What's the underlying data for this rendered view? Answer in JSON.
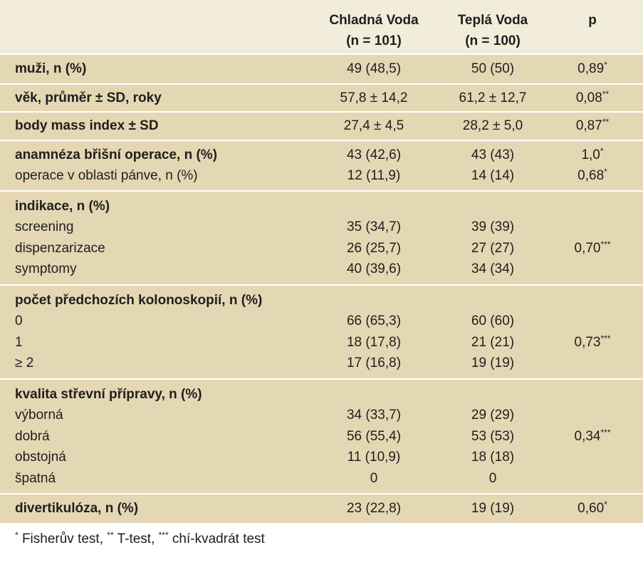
{
  "header": {
    "col1_line1": "Chladná Voda",
    "col1_line2": "(n = 101)",
    "col2_line1": "Teplá Voda",
    "col2_line2": "(n = 100)",
    "col3": "p"
  },
  "groups": [
    {
      "rows": [
        {
          "label": "muži, n (%)",
          "bold": true,
          "c1": "49 (48,5)",
          "c2": "50 (50)",
          "p": "0,89",
          "sup": "*"
        }
      ]
    },
    {
      "rows": [
        {
          "label": "věk, průměr ± SD, roky",
          "bold": true,
          "c1": "57,8 ± 14,2",
          "c2": "61,2 ± 12,7",
          "p": "0,08",
          "sup": "**"
        }
      ]
    },
    {
      "rows": [
        {
          "label": "body mass index ± SD",
          "bold": true,
          "c1": "27,4 ± 4,5",
          "c2": "28,2 ± 5,0",
          "p": "0,87",
          "sup": "**"
        }
      ]
    },
    {
      "rows": [
        {
          "label": "anamnéza břišní operace, n (%)",
          "bold": true,
          "c1": "43 (42,6)",
          "c2": "43 (43)",
          "p": "1,0",
          "sup": "*"
        },
        {
          "label": "operace v oblasti pánve, n (%)",
          "bold": false,
          "c1": "12 (11,9)",
          "c2": "14 (14)",
          "p": "0,68",
          "sup": "*"
        }
      ]
    },
    {
      "rows": [
        {
          "label": "indikace, n (%)",
          "bold": true,
          "c1": "",
          "c2": "",
          "p": "",
          "sup": ""
        },
        {
          "label": "screening",
          "bold": false,
          "c1": "35 (34,7)",
          "c2": "39 (39)",
          "p": "",
          "sup": ""
        },
        {
          "label": "dispenzarizace",
          "bold": false,
          "c1": "26 (25,7)",
          "c2": "27 (27)",
          "p": "0,70",
          "sup": "***"
        },
        {
          "label": "symptomy",
          "bold": false,
          "c1": "40 (39,6)",
          "c2": "34 (34)",
          "p": "",
          "sup": ""
        }
      ]
    },
    {
      "rows": [
        {
          "label": "počet předchozích kolonoskopií, n (%)",
          "bold": true,
          "c1": "",
          "c2": "",
          "p": "",
          "sup": ""
        },
        {
          "label": "0",
          "bold": false,
          "c1": "66 (65,3)",
          "c2": "60 (60)",
          "p": "",
          "sup": ""
        },
        {
          "label": "1",
          "bold": false,
          "c1": "18 (17,8)",
          "c2": "21 (21)",
          "p": "0,73",
          "sup": "***"
        },
        {
          "label": "≥ 2",
          "bold": false,
          "c1": "17 (16,8)",
          "c2": "19 (19)",
          "p": "",
          "sup": ""
        }
      ]
    },
    {
      "rows": [
        {
          "label": "kvalita střevní přípravy, n (%)",
          "bold": true,
          "c1": "",
          "c2": "",
          "p": "",
          "sup": ""
        },
        {
          "label": "výborná",
          "bold": false,
          "c1": "34 (33,7)",
          "c2": "29 (29)",
          "p": "",
          "sup": ""
        },
        {
          "label": "dobrá",
          "bold": false,
          "c1": "56 (55,4)",
          "c2": "53 (53)",
          "p": "0,34",
          "sup": "***"
        },
        {
          "label": "obstojná",
          "bold": false,
          "c1": "11 (10,9)",
          "c2": "18 (18)",
          "p": "",
          "sup": ""
        },
        {
          "label": "špatná",
          "bold": false,
          "c1": "0",
          "c2": "0",
          "p": "",
          "sup": ""
        }
      ]
    },
    {
      "rows": [
        {
          "label": "divertikulóza, n (%)",
          "bold": true,
          "c1": "23 (22,8)",
          "c2": "19 (19)",
          "p": "0,60",
          "sup": "*"
        }
      ]
    }
  ],
  "footnote": {
    "sup1": "*",
    "text1": " Fisherův test, ",
    "sup2": "**",
    "text2": " T-test, ",
    "sup3": "***",
    "text3": " chí-kvadrát test"
  },
  "colors": {
    "header_bg": "#f2ecdb",
    "row_bg": "#e4d7b3",
    "separator": "#ffffff"
  }
}
